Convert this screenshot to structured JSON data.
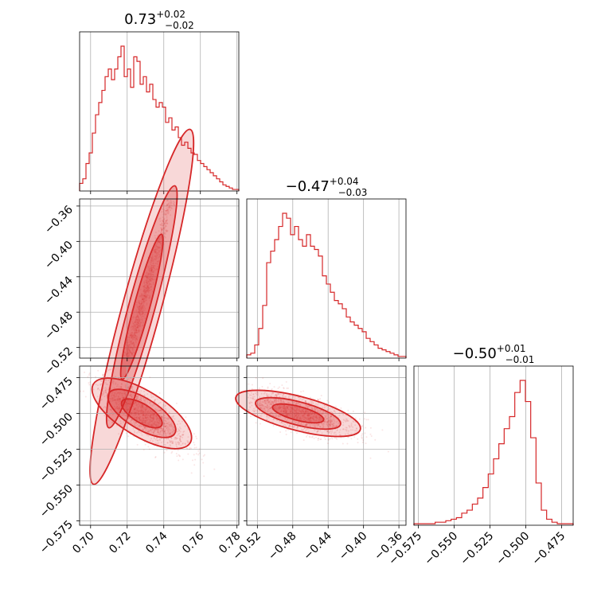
{
  "chart_data": {
    "type": "corner",
    "color": "#d62728",
    "grid": true,
    "titles": [
      {
        "value": "0.73",
        "plus": "+0.02",
        "minus": "−0.02"
      },
      {
        "value": "−0.47",
        "plus": "+0.04",
        "minus": "−0.03"
      },
      {
        "value": "−0.50",
        "plus": "+0.01",
        "minus": "−0.01"
      }
    ],
    "params": [
      {
        "range": [
          0.694,
          0.781
        ],
        "ticks": [
          0.7,
          0.72,
          0.74,
          0.76,
          0.78
        ],
        "tick_labels": [
          "0.70",
          "0.72",
          "0.74",
          "0.76",
          "0.78"
        ]
      },
      {
        "range": [
          -0.532,
          -0.352
        ],
        "ticks": [
          -0.52,
          -0.48,
          -0.44,
          -0.4,
          -0.36
        ],
        "tick_labels": [
          "−0.52",
          "−0.48",
          "−0.44",
          "−0.40",
          "−0.36"
        ]
      },
      {
        "range": [
          -0.578,
          -0.467
        ],
        "ticks": [
          -0.575,
          -0.55,
          -0.525,
          -0.5,
          -0.475
        ],
        "tick_labels": [
          "−0.575",
          "−0.550",
          "−0.525",
          "−0.500",
          "−0.475"
        ]
      }
    ],
    "histograms": [
      {
        "edges_range": [
          0.694,
          0.781
        ],
        "counts": [
          5,
          8,
          18,
          25,
          38,
          50,
          58,
          66,
          75,
          80,
          73,
          80,
          88,
          95,
          75,
          80,
          68,
          88,
          85,
          70,
          75,
          65,
          70,
          60,
          55,
          58,
          55,
          45,
          48,
          40,
          42,
          35,
          30,
          32,
          28,
          25,
          24,
          20,
          18,
          16,
          14,
          12,
          10,
          8,
          6,
          4,
          3,
          2,
          1,
          1
        ]
      },
      {
        "edges_range": [
          -0.532,
          -0.352
        ],
        "counts": [
          2,
          3,
          8,
          18,
          32,
          58,
          65,
          72,
          80,
          88,
          85,
          75,
          80,
          72,
          68,
          75,
          68,
          66,
          62,
          50,
          45,
          40,
          35,
          33,
          30,
          25,
          22,
          20,
          18,
          16,
          12,
          10,
          8,
          6,
          5,
          4,
          3,
          2,
          1,
          1
        ]
      },
      {
        "edges_range": [
          -0.578,
          -0.467
        ],
        "counts": [
          1,
          1,
          1,
          1,
          2,
          2,
          3,
          4,
          5,
          8,
          10,
          14,
          18,
          25,
          34,
          44,
          54,
          64,
          72,
          88,
          96,
          82,
          58,
          28,
          10,
          4,
          2,
          1,
          1,
          1
        ]
      }
    ],
    "correlations": [
      {
        "x": 0,
        "y": 1,
        "slope": 7.6,
        "mean": [
          0.728,
          -0.474
        ],
        "sx": 0.012,
        "noise": 0.011
      },
      {
        "x": 0,
        "y": 2,
        "slope": -0.78,
        "mean": [
          0.728,
          -0.5
        ],
        "sx": 0.012,
        "noise": 0.008
      },
      {
        "x": 1,
        "y": 2,
        "slope": -0.16,
        "mean": [
          -0.474,
          -0.5
        ],
        "sx": 0.032,
        "noise": 0.006
      }
    ]
  }
}
